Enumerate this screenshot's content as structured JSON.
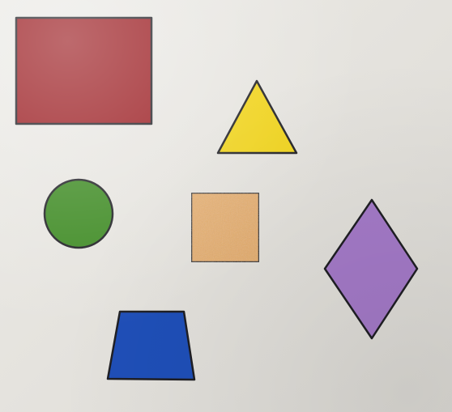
{
  "scene": {
    "background_color": "#e7e5e0",
    "outline_color": "#1f1f24",
    "shapes": [
      {
        "name": "rectangle",
        "color": "#9a1a1f"
      },
      {
        "name": "triangle",
        "color": "#f0d31a"
      },
      {
        "name": "circle",
        "color": "#3d8a22"
      },
      {
        "name": "square",
        "color": "#e7ad67"
      },
      {
        "name": "rhombus",
        "color": "#a47ac8"
      },
      {
        "name": "trapezoid",
        "color": "#1f4fb8"
      }
    ]
  }
}
